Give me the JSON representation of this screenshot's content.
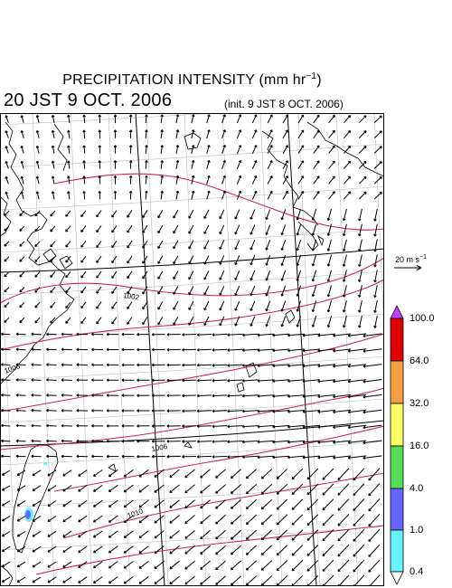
{
  "header": {
    "title_prefix": "PRECIPITATION INTENSITY (mm hr",
    "title_exp": "−1",
    "title_suffix": ")",
    "valid_time": "20 JST 9 OCT. 2006",
    "init_time": "(init. 9 JST 8 OCT. 2006)"
  },
  "vector_scale": {
    "prefix": "20 m s",
    "exp": "−1"
  },
  "isobars": {
    "labels": [
      "1002",
      "1006",
      "1006",
      "1010"
    ]
  },
  "legend": {
    "labels": [
      "100.0",
      "64.0",
      "32.0",
      "16.0",
      "4.0",
      "1.0",
      "0.4"
    ],
    "colors": [
      "#e00000",
      "#f5a040",
      "#ffff66",
      "#55dd55",
      "#6666ff",
      "#66f5ff"
    ],
    "over_color": "#c040ff",
    "under_color": "#ffffff"
  },
  "colors": {
    "isobar": "#d0206a",
    "grid": "#bdbdbd",
    "coast": "#000000",
    "rain_light": "#66f5ff",
    "rain_moderate": "#6666ff"
  }
}
